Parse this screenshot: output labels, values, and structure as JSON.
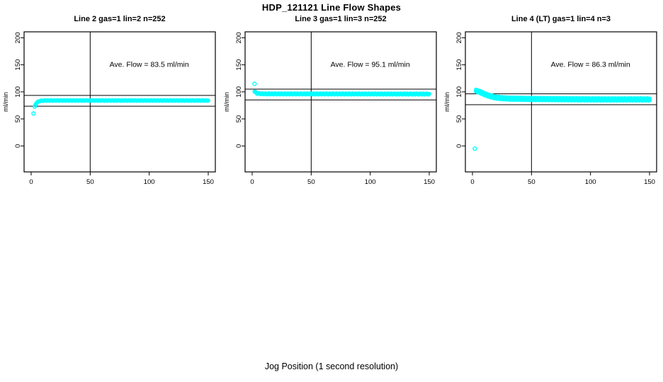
{
  "chart_data": {
    "type": "scatter",
    "figure_title": "HDP_121121  Line Flow Shapes",
    "outer_xlabel": "Jog Position (1 second resolution)",
    "shared": {
      "xlim": [
        -6,
        156
      ],
      "ylim": [
        -48,
        211
      ],
      "xticks": [
        0,
        50,
        100,
        150
      ],
      "yticks": [
        0,
        50,
        100,
        150,
        200
      ],
      "ylabel": "ml/min",
      "vline_x": 50,
      "point_color": "#00FFFF",
      "line_color": "#000000",
      "annotation_pos": {
        "x": 100,
        "y": 150
      },
      "grid": false,
      "legend": "none"
    },
    "panels": [
      {
        "title": "Line 2 gas=1 lin=2 n=252",
        "annotation": "Ave. Flow =  83.5  ml/min",
        "ave_flow": 83.5,
        "n": 252,
        "gas": 1,
        "lin": 2,
        "hlines": [
          93.5,
          73.5
        ],
        "outliers": [
          [
            2,
            60
          ]
        ],
        "profile": [
          [
            3,
            72
          ],
          [
            3.5,
            75
          ],
          [
            4,
            78
          ],
          [
            5,
            80.5
          ],
          [
            6,
            82
          ],
          [
            8,
            83.5
          ],
          [
            12,
            84
          ],
          [
            150,
            84
          ]
        ],
        "jitter": 0.5,
        "offsets": [
          0
        ]
      },
      {
        "title": "Line 3 gas=1 lin=3 n=252",
        "annotation": "Ave. Flow =  95.1  ml/min",
        "ave_flow": 95.1,
        "n": 252,
        "gas": 1,
        "lin": 3,
        "hlines": [
          105.1,
          85.1
        ],
        "outliers": [
          [
            2,
            115
          ]
        ],
        "profile": [
          [
            2,
            101
          ],
          [
            3,
            98.5
          ],
          [
            4,
            97.3
          ],
          [
            6,
            96.7
          ],
          [
            10,
            96.3
          ],
          [
            150,
            96
          ]
        ],
        "jitter": 1.0,
        "offsets": [
          0
        ]
      },
      {
        "title": "Line 4 (LT) gas=1 lin=4 n=3",
        "annotation": "Ave. Flow =  86.3  ml/min",
        "ave_flow": 86.3,
        "n": 3,
        "gas": 1,
        "lin": 4,
        "hlines": [
          96.3,
          76.3
        ],
        "outliers": [
          [
            2,
            -5
          ]
        ],
        "profile": [
          [
            3,
            102
          ],
          [
            4,
            101.5
          ],
          [
            6,
            100
          ],
          [
            8,
            98
          ],
          [
            10,
            96
          ],
          [
            13,
            93.5
          ],
          [
            16,
            91.5
          ],
          [
            20,
            89.5
          ],
          [
            25,
            88.3
          ],
          [
            32,
            87.5
          ],
          [
            45,
            87
          ],
          [
            70,
            86.5
          ],
          [
            110,
            86
          ],
          [
            150,
            86
          ]
        ],
        "jitter": 0.4,
        "offsets": [
          -1.3,
          0,
          1.3
        ]
      }
    ]
  }
}
